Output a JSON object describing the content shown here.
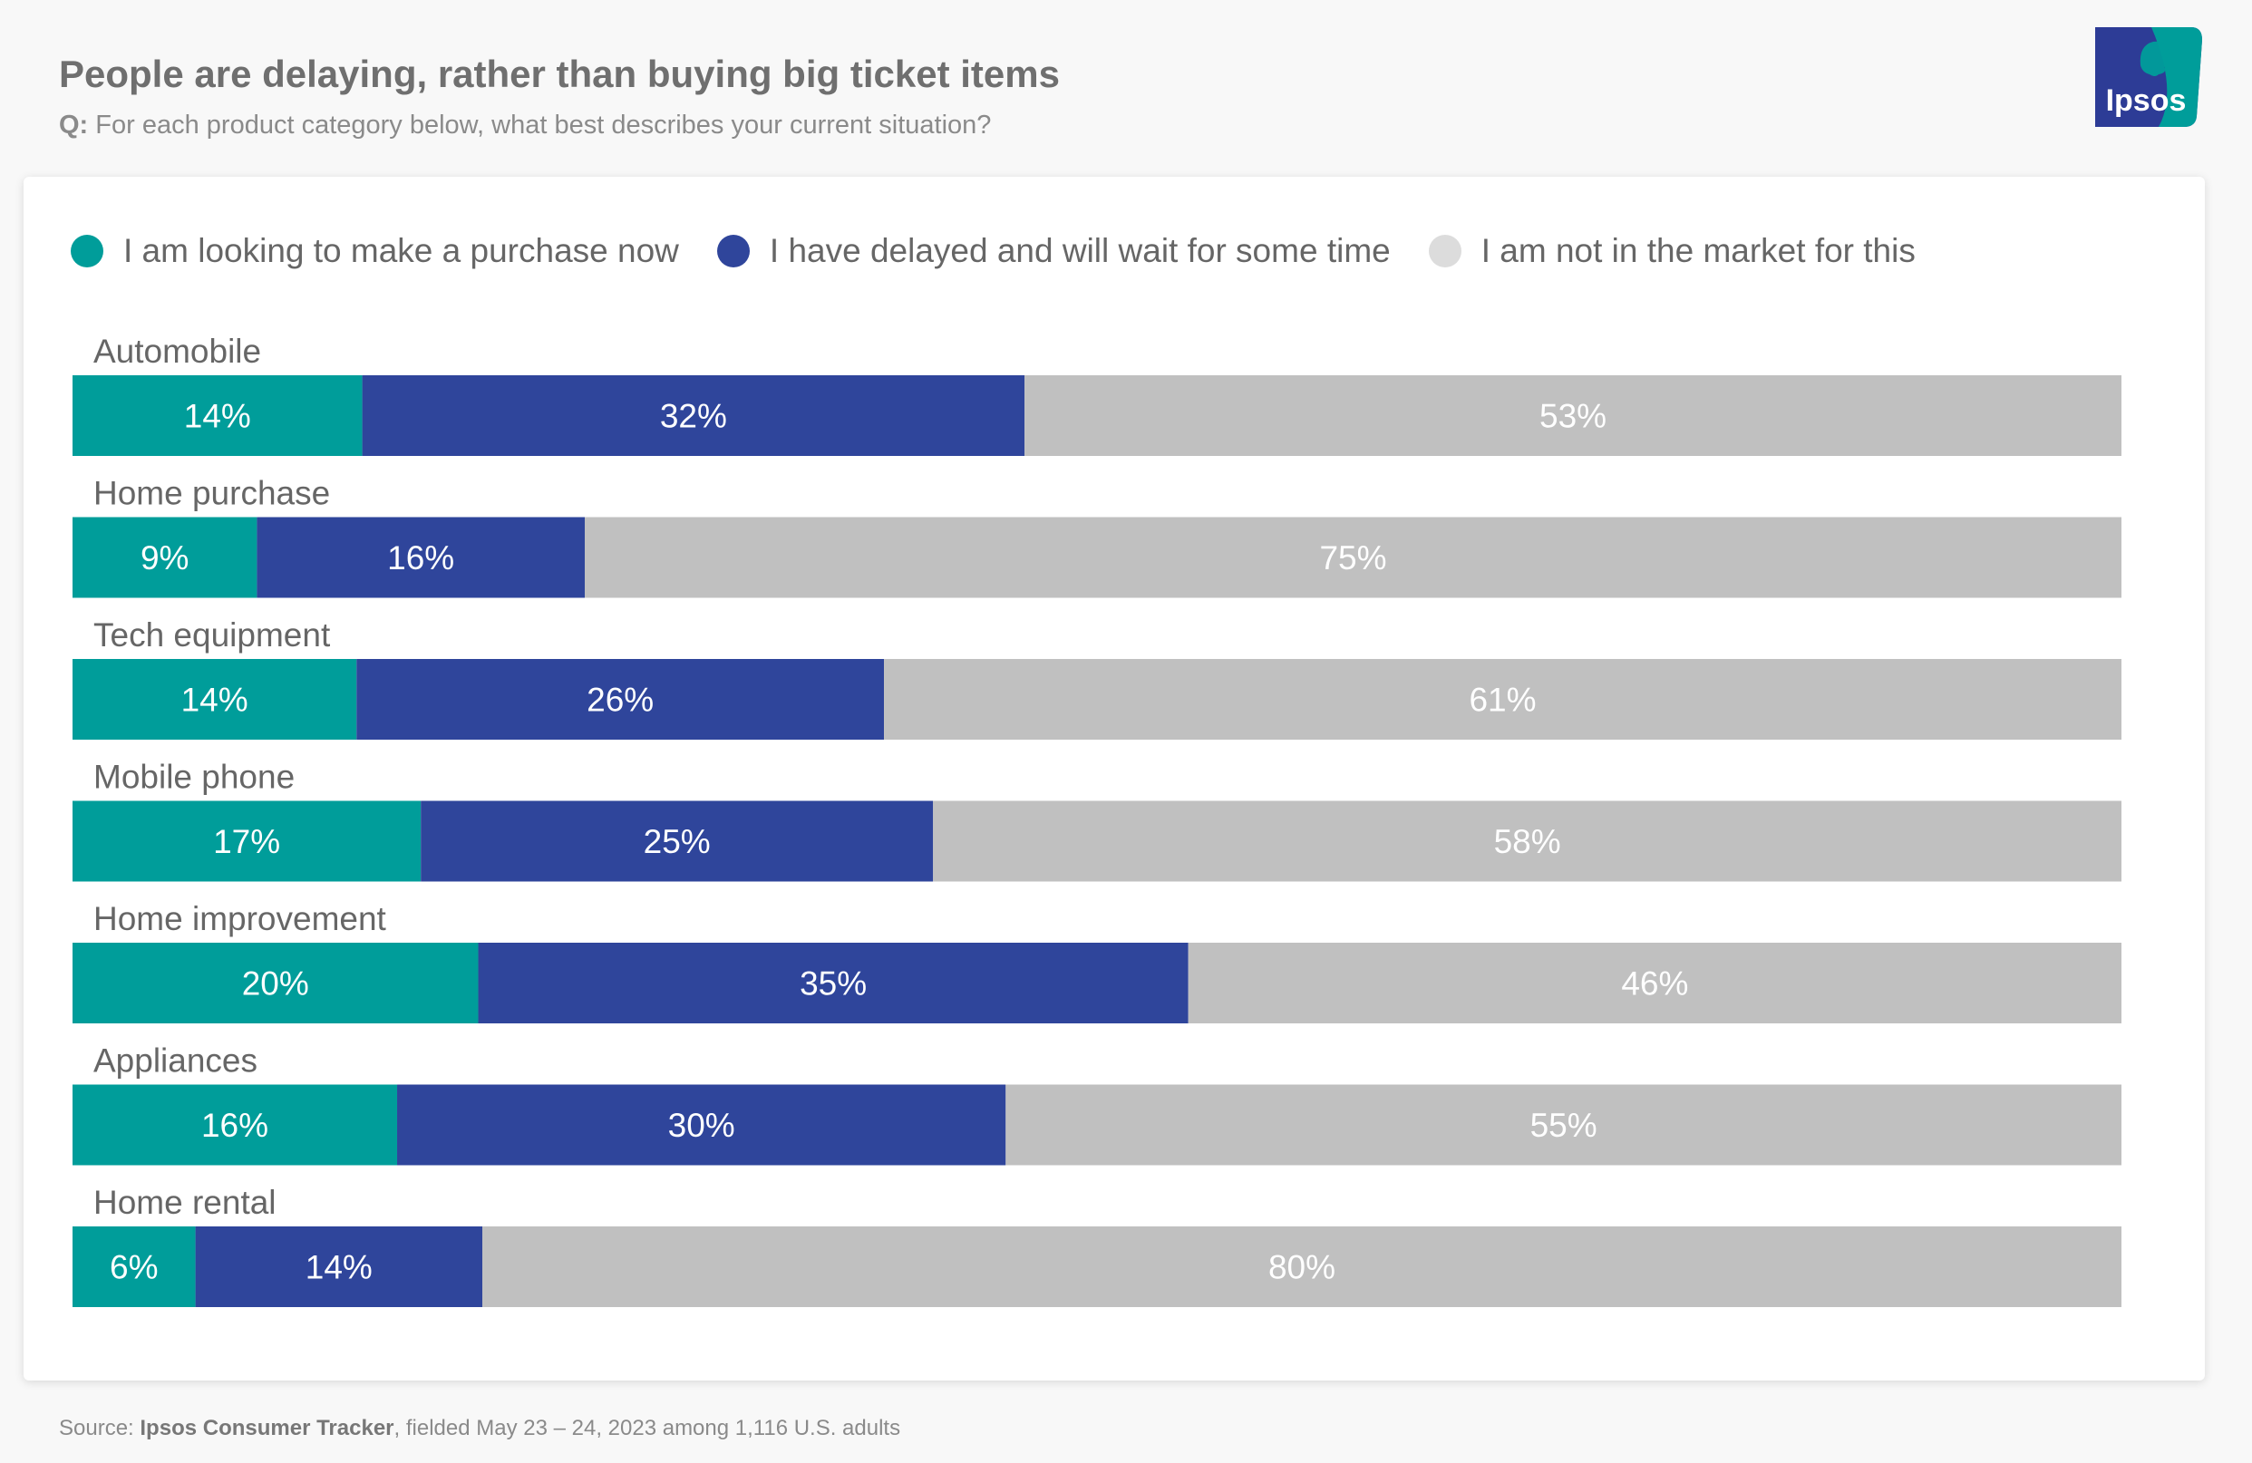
{
  "header": {
    "title": "People are delaying, rather than buying big ticket items",
    "question_prefix": "Q:",
    "question_text": "For each product category below, what best describes your current situation?"
  },
  "logo": {
    "text": "Ipsos",
    "icon": "ipsos-logo-icon",
    "bg": "#2d3c96",
    "accent": "#009d9a"
  },
  "chart_data": {
    "type": "bar",
    "orientation": "horizontal",
    "stacked": true,
    "categories": [
      "Automobile",
      "Home purchase",
      "Tech equipment",
      "Mobile phone",
      "Home improvement",
      "Appliances",
      "Home rental"
    ],
    "series": [
      {
        "name": "I am looking to make a purchase now",
        "color": "#009d9a",
        "values": [
          14,
          9,
          14,
          17,
          20,
          16,
          6
        ]
      },
      {
        "name": "I have delayed and will wait for some time",
        "color": "#2f459b",
        "values": [
          32,
          16,
          26,
          25,
          35,
          30,
          14
        ]
      },
      {
        "name": "I am not in the market for this",
        "color": "#c0c0c0",
        "legend_color": "#dcdcdc",
        "values": [
          53,
          75,
          61,
          58,
          46,
          55,
          80
        ]
      }
    ],
    "value_suffix": "%",
    "legend_position": "top-left",
    "grid": false
  },
  "footer": {
    "source_prefix": "Source:",
    "source_name": "Ipsos Consumer Tracker",
    "source_rest": ", fielded May 23 – 24, 2023 among 1,116 U.S. adults"
  }
}
